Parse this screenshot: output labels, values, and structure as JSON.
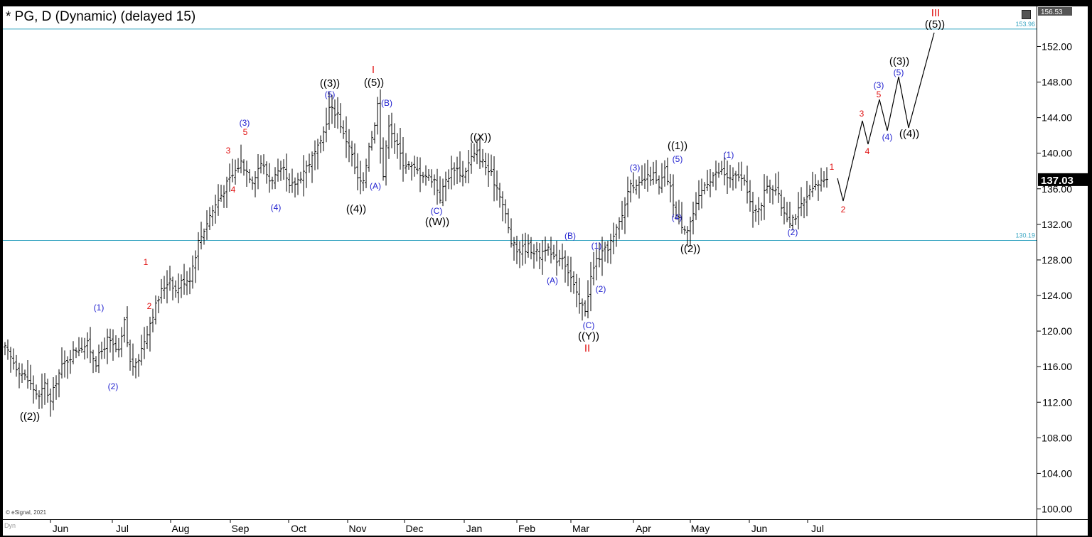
{
  "title": "* PG, D (Dynamic) (delayed 15)",
  "copyright": "© eSignal, 2021",
  "dyn_label": "Dyn",
  "current_price": "137.03",
  "top_price": "156.53",
  "colors": {
    "background": "#ffffff",
    "frame": "#000000",
    "bars": "#000000",
    "hline": "#3aa6c2",
    "wave_black": "#000000",
    "wave_blue": "#1f1fcf",
    "wave_red": "#e01010",
    "price_tag_bg": "#000000",
    "price_tag_text": "#ffffff"
  },
  "chart_data": {
    "type": "ohlc",
    "symbol": "PG",
    "timeframe": "D",
    "ylim": [
      98.5,
      157
    ],
    "y_ticks": [
      "100.00",
      "104.00",
      "108.00",
      "112.00",
      "116.00",
      "120.00",
      "124.00",
      "128.00",
      "132.00",
      "136.00",
      "140.00",
      "144.00",
      "148.00",
      "152.00"
    ],
    "x_ticks": [
      "Jun",
      "Jul",
      "Aug",
      "Sep",
      "Oct",
      "Nov",
      "Dec",
      "Jan",
      "Feb",
      "Mar",
      "Apr",
      "May",
      "Jun",
      "Jul"
    ],
    "horizontal_lines": [
      {
        "value": 153.96,
        "label": "153.96"
      },
      {
        "value": 130.19,
        "label": "130.19"
      }
    ],
    "price_path": [
      [
        0,
        118
      ],
      [
        4,
        116
      ],
      [
        8,
        114.5
      ],
      [
        12,
        112.5
      ],
      [
        14,
        114
      ],
      [
        16,
        112
      ],
      [
        18,
        114.5
      ],
      [
        20,
        116
      ],
      [
        25,
        118
      ],
      [
        29,
        118.5
      ],
      [
        32,
        116.5
      ],
      [
        36,
        119
      ],
      [
        40,
        117.5
      ],
      [
        42,
        121
      ],
      [
        44,
        116.5
      ],
      [
        46,
        116
      ],
      [
        48,
        118
      ],
      [
        52,
        122
      ],
      [
        55,
        124.5
      ],
      [
        58,
        126
      ],
      [
        60,
        124.5
      ],
      [
        62,
        125.5
      ],
      [
        65,
        126
      ],
      [
        68,
        130
      ],
      [
        72,
        133
      ],
      [
        78,
        136.5
      ],
      [
        83,
        139
      ],
      [
        87,
        137
      ],
      [
        90,
        139
      ],
      [
        93,
        137
      ],
      [
        98,
        138
      ],
      [
        100,
        136
      ],
      [
        103,
        137
      ],
      [
        107,
        139
      ],
      [
        111,
        141
      ],
      [
        114,
        145
      ],
      [
        117,
        144.5
      ],
      [
        119,
        142
      ],
      [
        121,
        141
      ],
      [
        124,
        137
      ],
      [
        126,
        136.5
      ],
      [
        128,
        141
      ],
      [
        130,
        143
      ],
      [
        131,
        146
      ],
      [
        132,
        141
      ],
      [
        133,
        137.5
      ],
      [
        135,
        143.5
      ],
      [
        137,
        141.5
      ],
      [
        140,
        139
      ],
      [
        145,
        138
      ],
      [
        151,
        137
      ],
      [
        153,
        135
      ],
      [
        155,
        137
      ],
      [
        158,
        138.5
      ],
      [
        161,
        137.5
      ],
      [
        164,
        139.5
      ],
      [
        166,
        140
      ],
      [
        168,
        139
      ],
      [
        171,
        137.5
      ],
      [
        174,
        135.5
      ],
      [
        176,
        133
      ],
      [
        178,
        130
      ],
      [
        180,
        129
      ],
      [
        184,
        129.5
      ],
      [
        188,
        128.5
      ],
      [
        190,
        129.5
      ],
      [
        193,
        128
      ],
      [
        196,
        128.5
      ],
      [
        199,
        126
      ],
      [
        202,
        123
      ],
      [
        204,
        122.5
      ],
      [
        206,
        126
      ],
      [
        208,
        128
      ],
      [
        211,
        129
      ],
      [
        214,
        130.5
      ],
      [
        217,
        133
      ],
      [
        220,
        137
      ],
      [
        222,
        136
      ],
      [
        225,
        137
      ],
      [
        228,
        137.5
      ],
      [
        230,
        136
      ],
      [
        232,
        138
      ],
      [
        234,
        136
      ],
      [
        236,
        133
      ],
      [
        238,
        132
      ],
      [
        240,
        131.5
      ],
      [
        243,
        134
      ],
      [
        246,
        136.5
      ],
      [
        249,
        137.5
      ],
      [
        252,
        138
      ],
      [
        255,
        137
      ],
      [
        258,
        137.5
      ],
      [
        261,
        136
      ],
      [
        263,
        133
      ],
      [
        266,
        134.5
      ],
      [
        268,
        136.5
      ],
      [
        271,
        136
      ],
      [
        273,
        134
      ],
      [
        276,
        132.5
      ],
      [
        278,
        133
      ],
      [
        280,
        134
      ],
      [
        283,
        135.5
      ],
      [
        286,
        136.5
      ],
      [
        289,
        137.5
      ]
    ],
    "projection": [
      [
        1178,
        251
      ],
      [
        1186,
        283
      ],
      [
        1213,
        170
      ],
      [
        1221,
        203
      ],
      [
        1237,
        140
      ],
      [
        1248,
        184
      ],
      [
        1264,
        108
      ],
      [
        1278,
        180
      ],
      [
        1314,
        46
      ]
    ],
    "wave_labels": [
      {
        "text": "((2))",
        "color": "black",
        "size": "lg"
      },
      {
        "text": "(1)",
        "color": "blue",
        "size": "sm"
      },
      {
        "text": "(2)",
        "color": "blue",
        "size": "sm"
      },
      {
        "text": "1",
        "color": "red",
        "size": "sm"
      },
      {
        "text": "2",
        "color": "red",
        "size": "sm"
      },
      {
        "text": "3",
        "color": "red",
        "size": "sm"
      },
      {
        "text": "4",
        "color": "red",
        "size": "sm"
      },
      {
        "text": "(3)",
        "color": "blue",
        "size": "sm"
      },
      {
        "text": "5",
        "color": "red",
        "size": "sm"
      },
      {
        "text": "(4)",
        "color": "blue",
        "size": "sm"
      },
      {
        "text": "((3))",
        "color": "black",
        "size": "lg"
      },
      {
        "text": "(5)",
        "color": "blue",
        "size": "sm"
      },
      {
        "text": "((4))",
        "color": "black",
        "size": "lg"
      },
      {
        "text": "I",
        "color": "red",
        "size": "lg"
      },
      {
        "text": "((5))",
        "color": "black",
        "size": "lg"
      },
      {
        "text": "(B)",
        "color": "blue",
        "size": "sm"
      },
      {
        "text": "(A)",
        "color": "blue",
        "size": "sm"
      },
      {
        "text": "(C)",
        "color": "blue",
        "size": "sm"
      },
      {
        "text": "((W))",
        "color": "black",
        "size": "lg"
      },
      {
        "text": "((X))",
        "color": "black",
        "size": "lg"
      },
      {
        "text": "(B)",
        "color": "blue",
        "size": "sm"
      },
      {
        "text": "(A)",
        "color": "blue",
        "size": "sm"
      },
      {
        "text": "(1)",
        "color": "blue",
        "size": "sm"
      },
      {
        "text": "(2)",
        "color": "blue",
        "size": "sm"
      },
      {
        "text": "(C)",
        "color": "blue",
        "size": "sm"
      },
      {
        "text": "((Y))",
        "color": "black",
        "size": "lg"
      },
      {
        "text": "II",
        "color": "red",
        "size": "lg"
      },
      {
        "text": "(3)",
        "color": "blue",
        "size": "sm"
      },
      {
        "text": "((1))",
        "color": "black",
        "size": "lg"
      },
      {
        "text": "(5)",
        "color": "blue",
        "size": "sm"
      },
      {
        "text": "(4)",
        "color": "blue",
        "size": "sm"
      },
      {
        "text": "((2))",
        "color": "black",
        "size": "lg"
      },
      {
        "text": "(1)",
        "color": "blue",
        "size": "sm"
      },
      {
        "text": "(2)",
        "color": "blue",
        "size": "sm"
      },
      {
        "text": "1",
        "color": "red",
        "size": "sm"
      },
      {
        "text": "2",
        "color": "red",
        "size": "sm"
      },
      {
        "text": "3",
        "color": "red",
        "size": "sm"
      },
      {
        "text": "4",
        "color": "red",
        "size": "sm"
      },
      {
        "text": "(3)",
        "color": "blue",
        "size": "sm"
      },
      {
        "text": "5",
        "color": "red",
        "size": "sm"
      },
      {
        "text": "(4)",
        "color": "blue",
        "size": "sm"
      },
      {
        "text": "((3))",
        "color": "black",
        "size": "lg"
      },
      {
        "text": "(5)",
        "color": "blue",
        "size": "sm"
      },
      {
        "text": "((4))",
        "color": "black",
        "size": "lg"
      },
      {
        "text": "III",
        "color": "red",
        "size": "lg"
      },
      {
        "text": "((5))",
        "color": "black",
        "size": "lg"
      }
    ]
  }
}
